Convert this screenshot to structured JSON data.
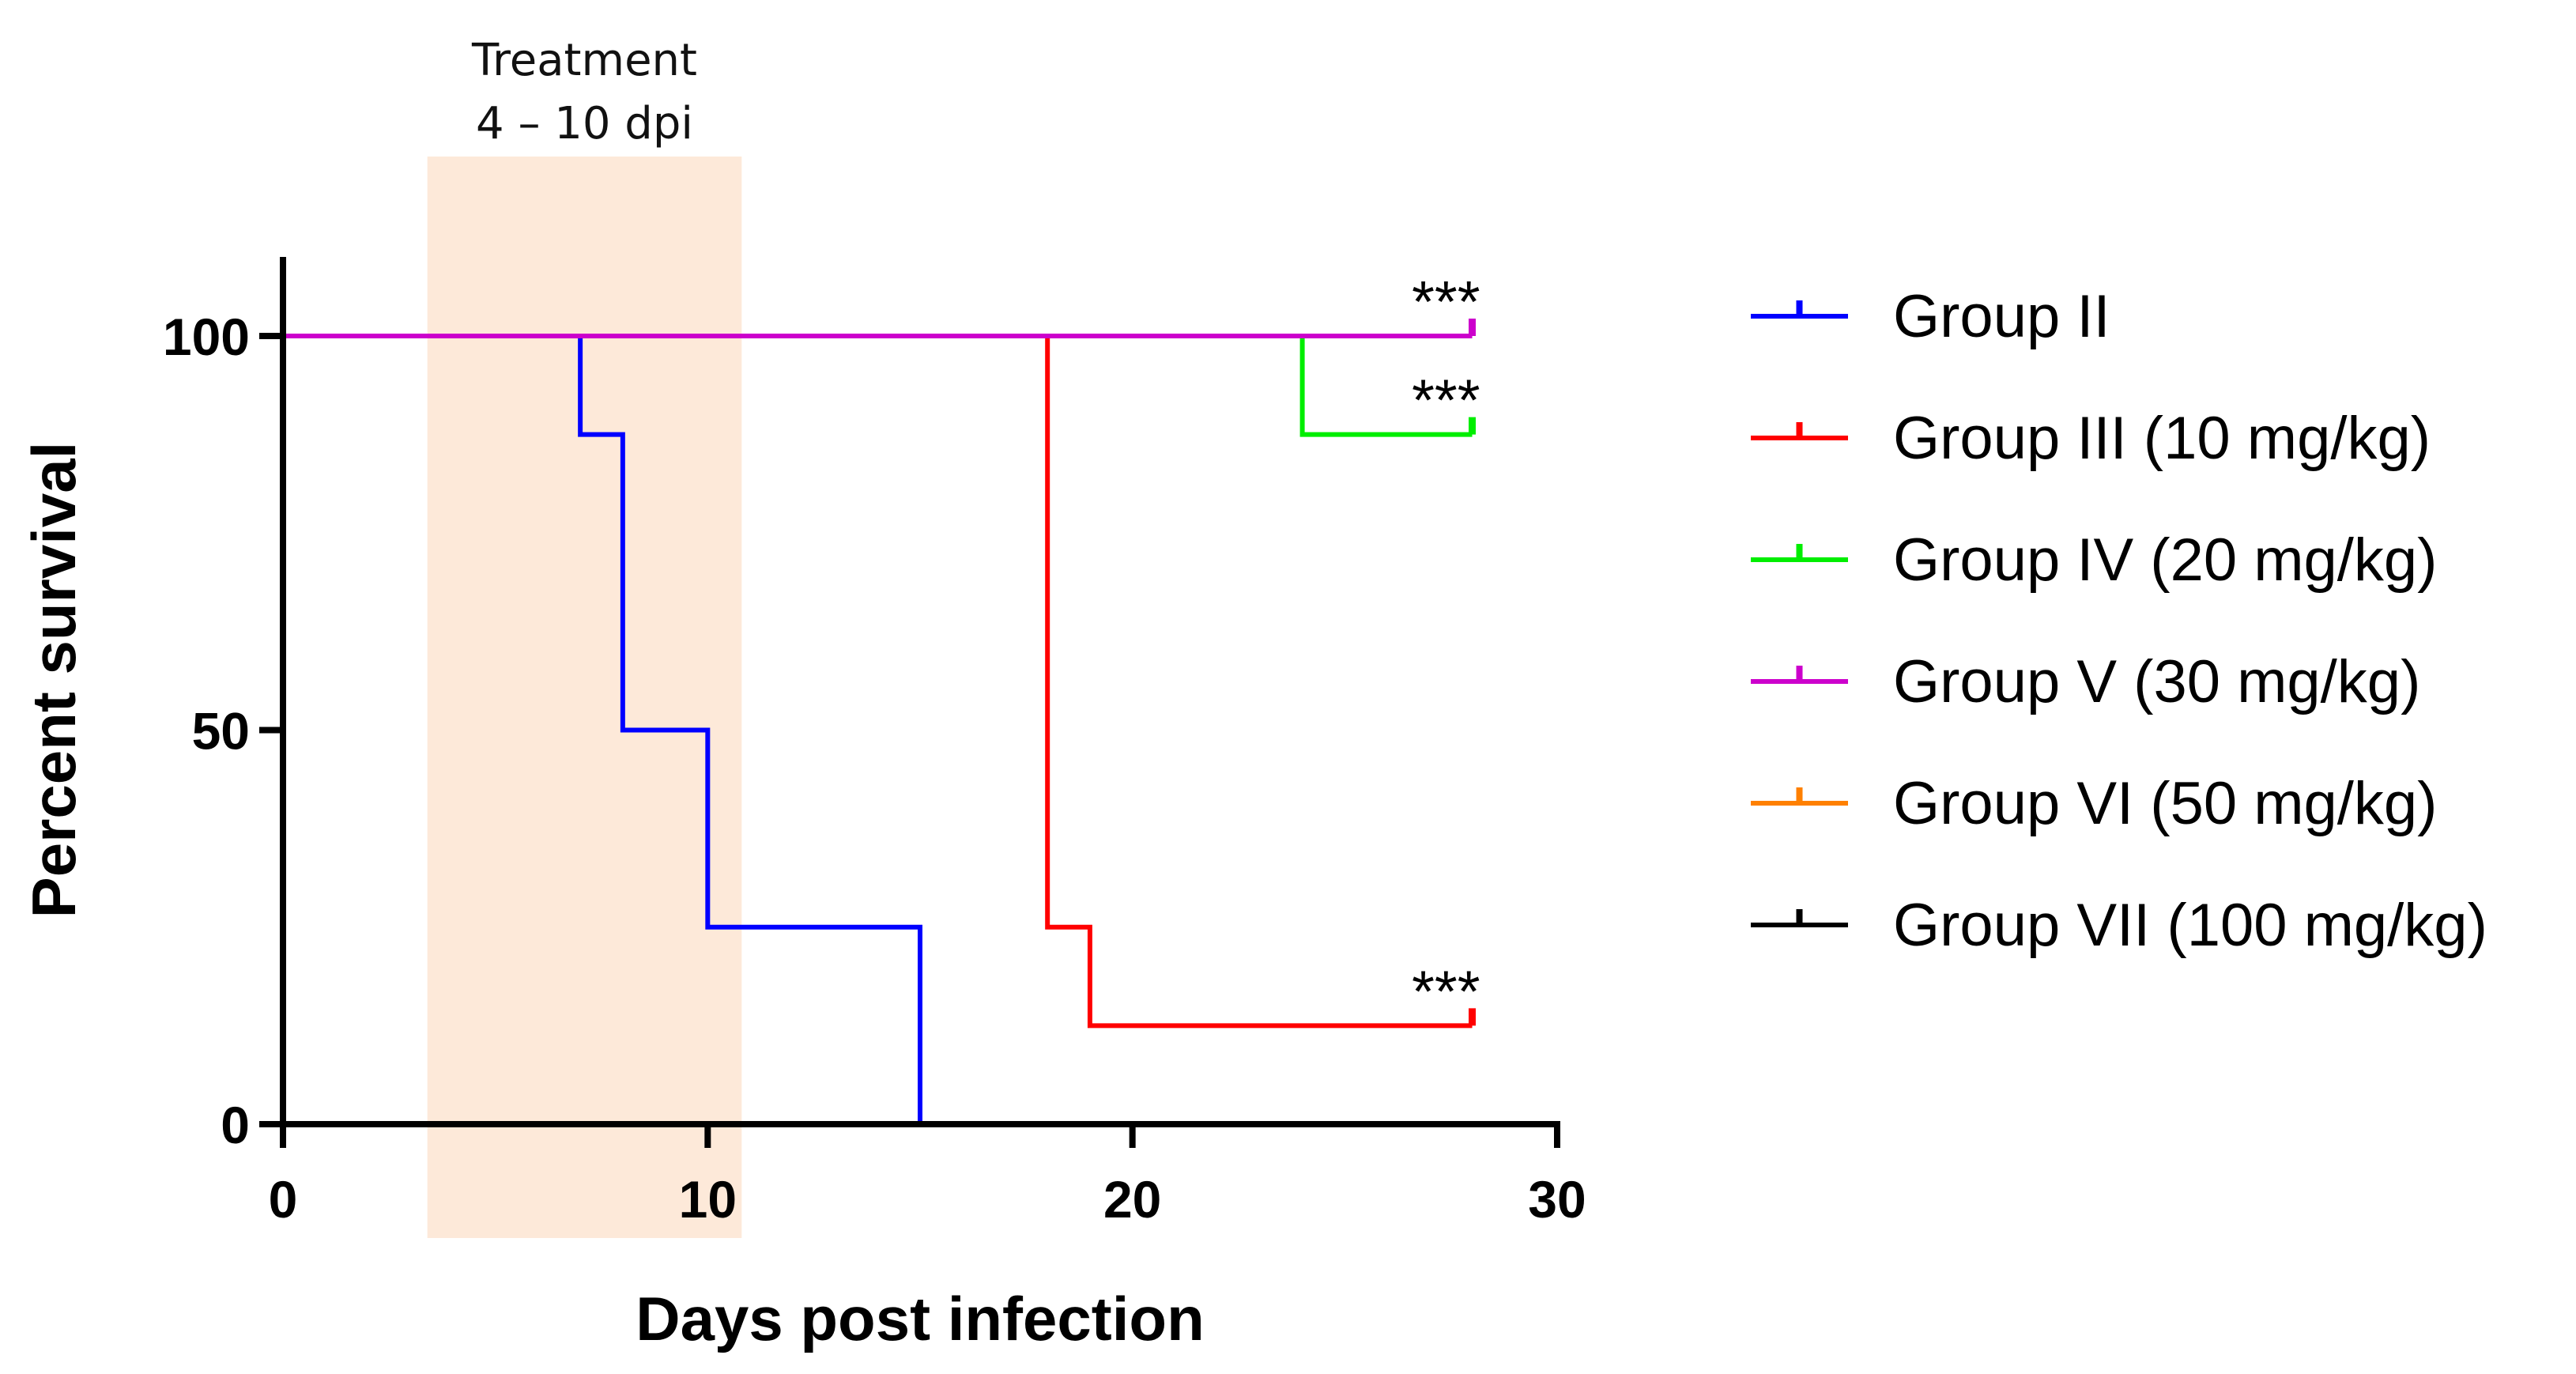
{
  "chart_data": {
    "type": "line",
    "subtype": "kaplan-meier-survival",
    "xlabel": "Days post infection",
    "ylabel": "Percent survival",
    "xlim": [
      0,
      30
    ],
    "ylim": [
      0,
      110
    ],
    "xticks": [
      0,
      10,
      20,
      30
    ],
    "yticks": [
      0,
      50,
      100
    ],
    "grid": false,
    "legend_position": "right",
    "shaded_region": {
      "x_start": 3.4,
      "x_end": 10.8,
      "color": "#fde9d9",
      "label_line1": "Treatment",
      "label_line2": "4 – 10 dpi"
    },
    "series": [
      {
        "name": "Group II",
        "color": "#0000ff",
        "steps": [
          [
            0,
            100
          ],
          [
            7,
            100
          ],
          [
            7,
            87.5
          ],
          [
            8,
            87.5
          ],
          [
            8,
            50
          ],
          [
            10,
            50
          ],
          [
            10,
            25
          ],
          [
            15,
            25
          ],
          [
            15,
            0
          ]
        ],
        "censor": []
      },
      {
        "name": "Group III (10 mg/kg)",
        "color": "#ff0000",
        "steps": [
          [
            0,
            100
          ],
          [
            18,
            100
          ],
          [
            18,
            25
          ],
          [
            19,
            25
          ],
          [
            19,
            12.5
          ],
          [
            28,
            12.5
          ]
        ],
        "censor": [
          [
            28,
            12.5
          ]
        ],
        "significance": "***"
      },
      {
        "name": "Group IV (20 mg/kg)",
        "color": "#00ee00",
        "steps": [
          [
            0,
            100
          ],
          [
            24,
            100
          ],
          [
            24,
            87.5
          ],
          [
            28,
            87.5
          ]
        ],
        "censor": [
          [
            28,
            87.5
          ]
        ],
        "significance": "***"
      },
      {
        "name": "Group V (30 mg/kg)",
        "color": "#cc00cc",
        "steps": [
          [
            0,
            100
          ],
          [
            28,
            100
          ]
        ],
        "censor": [
          [
            28,
            100
          ]
        ],
        "significance": "***"
      },
      {
        "name": "Group VI (50 mg/kg)",
        "color": "#ff8000",
        "steps": [],
        "censor": []
      },
      {
        "name": "Group VII (100 mg/kg)",
        "color": "#000000",
        "steps": [],
        "censor": []
      }
    ]
  }
}
